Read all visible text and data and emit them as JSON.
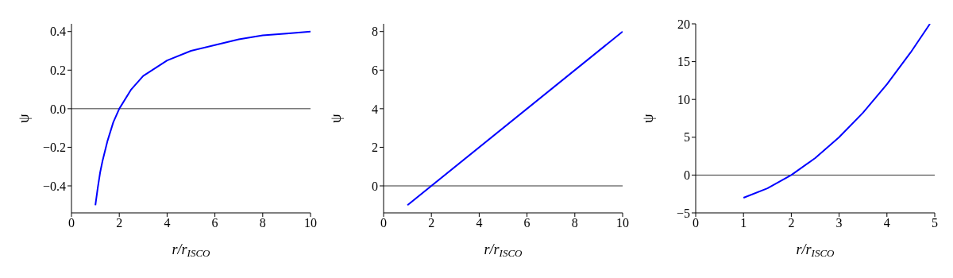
{
  "chart_data": [
    {
      "type": "line",
      "xlabel": "r/r$_{ISCO}$",
      "ylabel": "ψ",
      "x": [
        1,
        1.1,
        1.2,
        1.3,
        1.5,
        1.75,
        2,
        2.5,
        3,
        3.5,
        4,
        5,
        6,
        7,
        8,
        9,
        10
      ],
      "series": [
        {
          "color": "#0000ff",
          "values": [
            -0.5,
            -0.41,
            -0.33,
            -0.27,
            -0.17,
            -0.07,
            0,
            0.1,
            0.17,
            0.21,
            0.25,
            0.3,
            0.33,
            0.36,
            0.38,
            0.39,
            0.4
          ]
        }
      ],
      "xlim": [
        0,
        10
      ],
      "xticks": [
        0,
        2,
        4,
        6,
        8,
        10
      ],
      "ylim": [
        -0.54,
        0.44
      ],
      "yticks": [
        {
          "value": -0.4,
          "label": "−0.4"
        },
        {
          "value": -0.2,
          "label": "−0.2"
        },
        {
          "value": 0,
          "label": "0.0"
        },
        {
          "value": 0.2,
          "label": "0.2"
        },
        {
          "value": 0.4,
          "label": "0.4"
        }
      ],
      "ref_lines": [
        {
          "axis": "y",
          "value": 0,
          "color": "#000000"
        }
      ]
    },
    {
      "type": "line",
      "xlabel": "r/r$_{ISCO}$",
      "ylabel": "ψ",
      "x": [
        1,
        10
      ],
      "series": [
        {
          "color": "#0000ff",
          "values": [
            -1,
            8
          ]
        }
      ],
      "xlim": [
        0,
        10
      ],
      "xticks": [
        0,
        2,
        4,
        6,
        8,
        10
      ],
      "ylim": [
        -1.4,
        8.4
      ],
      "yticks": [
        0,
        2,
        4,
        6,
        8
      ],
      "ref_lines": [
        {
          "axis": "y",
          "value": 0,
          "color": "#000000"
        }
      ]
    },
    {
      "type": "line",
      "xlabel": "r/r$_{ISCO}$",
      "ylabel": "ψ",
      "x": [
        1,
        1.5,
        2,
        2.5,
        3,
        3.5,
        4,
        4.5,
        4.9
      ],
      "series": [
        {
          "color": "#0000ff",
          "values": [
            -3,
            -1.75,
            0,
            2.25,
            5,
            8.25,
            12,
            16.25,
            20
          ]
        }
      ],
      "xlim": [
        0,
        5
      ],
      "xticks": [
        0,
        1,
        2,
        3,
        4,
        5
      ],
      "ylim": [
        -5,
        20
      ],
      "yticks": [
        {
          "value": -5,
          "label": "−5"
        },
        0,
        5,
        10,
        15,
        20
      ],
      "ref_lines": [
        {
          "axis": "y",
          "value": 0,
          "color": "#000000"
        }
      ]
    }
  ]
}
